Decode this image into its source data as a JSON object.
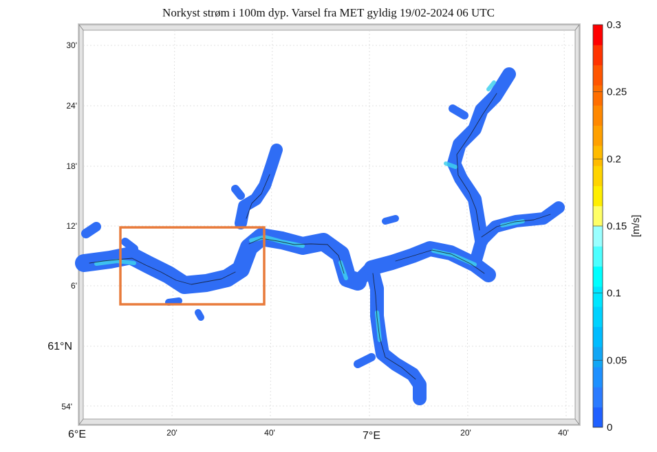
{
  "title": "Norkyst strøm i 100m dyp. Varsel fra MET gyldig 19/02-2024 06 UTC",
  "lat_labels": [
    "30'",
    "24'",
    "18'",
    "12'",
    "6'",
    "61°N",
    "54'"
  ],
  "lon_labels": [
    "6°E",
    "20'",
    "40'",
    "7°E",
    "20'",
    "40'"
  ],
  "colorbar": {
    "unit": "[m/s]",
    "min": 0,
    "max": 0.3,
    "tick_labels": [
      "0.3",
      "0.25",
      "0.2",
      "0.15",
      "0.1",
      "0.05",
      "0"
    ],
    "colors": [
      "#2060ff",
      "#2b7bff",
      "#1e90ff",
      "#12a6f5",
      "#00bcff",
      "#00d2ff",
      "#00e6ff",
      "#00ffff",
      "#4dffff",
      "#99ffff",
      "#ffff66",
      "#ffee00",
      "#ffd400",
      "#ffbb00",
      "#ffa000",
      "#ff8800",
      "#ff6e00",
      "#ff5500",
      "#ff3300",
      "#ff0000"
    ]
  },
  "colors": {
    "current_fill": "#2f6df5",
    "fast_current": "#3fd0ef",
    "highlight_box": "#e87a3a"
  }
}
